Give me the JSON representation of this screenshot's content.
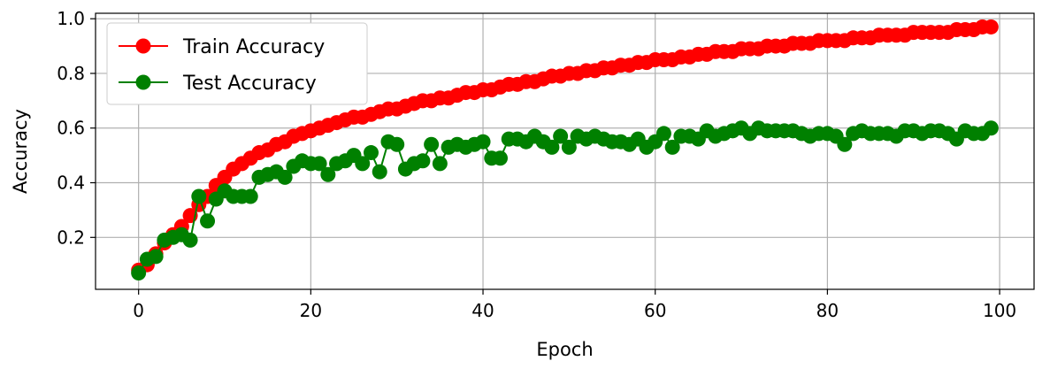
{
  "chart_data": {
    "type": "line",
    "title": "",
    "xlabel": "Epoch",
    "ylabel": "Accuracy",
    "xlim": [
      -5,
      104
    ],
    "ylim": [
      0.01,
      1.02
    ],
    "x_ticks": [
      0,
      20,
      40,
      60,
      80,
      100
    ],
    "y_ticks": [
      0.2,
      0.4,
      0.6,
      0.8,
      1.0
    ],
    "x_tick_labels": [
      "0",
      "20",
      "40",
      "60",
      "80",
      "100"
    ],
    "y_tick_labels": [
      "0.2",
      "0.4",
      "0.6",
      "0.8",
      "1.0"
    ],
    "grid": true,
    "legend_position": "top-left",
    "series": [
      {
        "name": "Train Accuracy",
        "color": "#ff0000",
        "marker": "circle",
        "x": [
          0,
          1,
          2,
          3,
          4,
          5,
          6,
          7,
          8,
          9,
          10,
          11,
          12,
          13,
          14,
          15,
          16,
          17,
          18,
          19,
          20,
          21,
          22,
          23,
          24,
          25,
          26,
          27,
          28,
          29,
          30,
          31,
          32,
          33,
          34,
          35,
          36,
          37,
          38,
          39,
          40,
          41,
          42,
          43,
          44,
          45,
          46,
          47,
          48,
          49,
          50,
          51,
          52,
          53,
          54,
          55,
          56,
          57,
          58,
          59,
          60,
          61,
          62,
          63,
          64,
          65,
          66,
          67,
          68,
          69,
          70,
          71,
          72,
          73,
          74,
          75,
          76,
          77,
          78,
          79,
          80,
          81,
          82,
          83,
          84,
          85,
          86,
          87,
          88,
          89,
          90,
          91,
          92,
          93,
          94,
          95,
          96,
          97,
          98,
          99
        ],
        "values": [
          0.08,
          0.1,
          0.14,
          0.18,
          0.21,
          0.24,
          0.28,
          0.32,
          0.35,
          0.39,
          0.42,
          0.45,
          0.47,
          0.49,
          0.51,
          0.52,
          0.54,
          0.55,
          0.57,
          0.58,
          0.59,
          0.6,
          0.61,
          0.62,
          0.63,
          0.64,
          0.64,
          0.65,
          0.66,
          0.67,
          0.67,
          0.68,
          0.69,
          0.7,
          0.7,
          0.71,
          0.71,
          0.72,
          0.73,
          0.73,
          0.74,
          0.74,
          0.75,
          0.76,
          0.76,
          0.77,
          0.77,
          0.78,
          0.79,
          0.79,
          0.8,
          0.8,
          0.81,
          0.81,
          0.82,
          0.82,
          0.83,
          0.83,
          0.84,
          0.84,
          0.85,
          0.85,
          0.85,
          0.86,
          0.86,
          0.87,
          0.87,
          0.88,
          0.88,
          0.88,
          0.89,
          0.89,
          0.89,
          0.9,
          0.9,
          0.9,
          0.91,
          0.91,
          0.91,
          0.92,
          0.92,
          0.92,
          0.92,
          0.93,
          0.93,
          0.93,
          0.94,
          0.94,
          0.94,
          0.94,
          0.95,
          0.95,
          0.95,
          0.95,
          0.95,
          0.96,
          0.96,
          0.96,
          0.97,
          0.97
        ]
      },
      {
        "name": "Test Accuracy",
        "color": "#008000",
        "marker": "circle",
        "x": [
          0,
          1,
          2,
          3,
          4,
          5,
          6,
          7,
          8,
          9,
          10,
          11,
          12,
          13,
          14,
          15,
          16,
          17,
          18,
          19,
          20,
          21,
          22,
          23,
          24,
          25,
          26,
          27,
          28,
          29,
          30,
          31,
          32,
          33,
          34,
          35,
          36,
          37,
          38,
          39,
          40,
          41,
          42,
          43,
          44,
          45,
          46,
          47,
          48,
          49,
          50,
          51,
          52,
          53,
          54,
          55,
          56,
          57,
          58,
          59,
          60,
          61,
          62,
          63,
          64,
          65,
          66,
          67,
          68,
          69,
          70,
          71,
          72,
          73,
          74,
          75,
          76,
          77,
          78,
          79,
          80,
          81,
          82,
          83,
          84,
          85,
          86,
          87,
          88,
          89,
          90,
          91,
          92,
          93,
          94,
          95,
          96,
          97,
          98,
          99
        ],
        "values": [
          0.07,
          0.12,
          0.13,
          0.19,
          0.2,
          0.21,
          0.19,
          0.35,
          0.26,
          0.34,
          0.37,
          0.35,
          0.35,
          0.35,
          0.42,
          0.43,
          0.44,
          0.42,
          0.46,
          0.48,
          0.47,
          0.47,
          0.43,
          0.47,
          0.48,
          0.5,
          0.47,
          0.51,
          0.44,
          0.55,
          0.54,
          0.45,
          0.47,
          0.48,
          0.54,
          0.47,
          0.53,
          0.54,
          0.53,
          0.54,
          0.55,
          0.49,
          0.49,
          0.56,
          0.56,
          0.55,
          0.57,
          0.55,
          0.53,
          0.57,
          0.53,
          0.57,
          0.56,
          0.57,
          0.56,
          0.55,
          0.55,
          0.54,
          0.56,
          0.53,
          0.55,
          0.58,
          0.53,
          0.57,
          0.57,
          0.56,
          0.59,
          0.57,
          0.58,
          0.59,
          0.6,
          0.58,
          0.6,
          0.59,
          0.59,
          0.59,
          0.59,
          0.58,
          0.57,
          0.58,
          0.58,
          0.57,
          0.54,
          0.58,
          0.59,
          0.58,
          0.58,
          0.58,
          0.57,
          0.59,
          0.59,
          0.58,
          0.59,
          0.59,
          0.58,
          0.56,
          0.59,
          0.58,
          0.58,
          0.6
        ]
      }
    ]
  }
}
